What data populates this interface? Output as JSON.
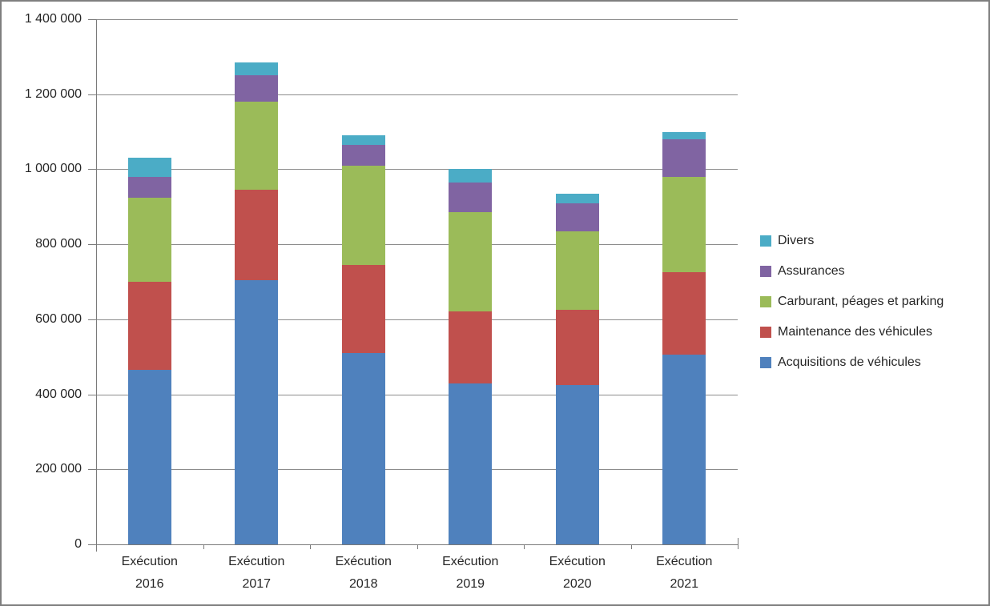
{
  "chart_data": {
    "type": "bar",
    "stacked": true,
    "title": "",
    "xlabel": "",
    "ylabel": "",
    "ylim": [
      0,
      1400000
    ],
    "ytick_step": 200000,
    "ytick_labels": [
      "0",
      "200 000",
      "400 000",
      "600 000",
      "800 000",
      "1 000 000",
      "1 200 000",
      "1 400 000"
    ],
    "grid": true,
    "legend_position": "right",
    "categories": [
      {
        "label": "Exécution 2016",
        "lines": [
          "Exécution",
          "2016"
        ]
      },
      {
        "label": "Exécution 2017",
        "lines": [
          "Exécution",
          "2017"
        ]
      },
      {
        "label": "Exécution 2018",
        "lines": [
          "Exécution",
          "2018"
        ]
      },
      {
        "label": "Exécution 2019",
        "lines": [
          "Exécution",
          "2019"
        ]
      },
      {
        "label": "Exécution 2020",
        "lines": [
          "Exécution",
          "2020"
        ]
      },
      {
        "label": "Exécution 2021",
        "lines": [
          "Exécution",
          "2021"
        ]
      }
    ],
    "series": [
      {
        "name": "Acquisitions de véhicules",
        "color": "#4F81BD",
        "values": [
          465000,
          705000,
          510000,
          430000,
          425000,
          505000
        ]
      },
      {
        "name": "Maintenance des véhicules",
        "color": "#C0504D",
        "values": [
          235000,
          240000,
          235000,
          190000,
          200000,
          220000
        ]
      },
      {
        "name": "Carburant, péages et parking",
        "color": "#9BBB59",
        "values": [
          225000,
          235000,
          265000,
          265000,
          210000,
          255000
        ]
      },
      {
        "name": "Assurances",
        "color": "#8064A2",
        "values": [
          55000,
          70000,
          55000,
          80000,
          75000,
          100000
        ]
      },
      {
        "name": "Divers",
        "color": "#4BACC6",
        "values": [
          50000,
          35000,
          25000,
          35000,
          25000,
          20000
        ]
      }
    ],
    "stack_totals": [
      1030000,
      1285000,
      1090000,
      1000000,
      935000,
      1100000
    ],
    "legend": [
      {
        "label": "Divers",
        "color": "#4BACC6"
      },
      {
        "label": "Assurances",
        "color": "#8064A2"
      },
      {
        "label": "Carburant, péages et parking",
        "color": "#9BBB59"
      },
      {
        "label": "Maintenance des véhicules",
        "color": "#C0504D"
      },
      {
        "label": "Acquisitions de véhicules",
        "color": "#4F81BD"
      }
    ]
  }
}
